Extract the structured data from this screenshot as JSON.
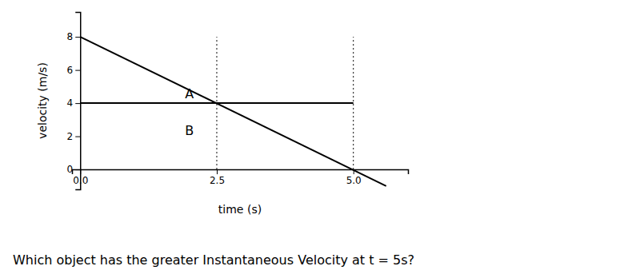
{
  "chart_data": {
    "type": "line",
    "xlabel": "time (s)",
    "ylabel": "velocity (m/s)",
    "color": "#000000",
    "xlim": [
      -0.15,
      6.0
    ],
    "ylim": [
      -1.2,
      9.5
    ],
    "xticks": [
      {
        "value": 0,
        "label": "0.0"
      },
      {
        "value": 2.5,
        "label": "2.5"
      },
      {
        "value": 5,
        "label": "5.0"
      }
    ],
    "yticks": [
      0,
      2,
      4,
      6,
      8
    ],
    "series": [
      {
        "name": "A",
        "x": [
          0,
          5
        ],
        "values": [
          4,
          4
        ],
        "label_x": 2.0,
        "label_y": 4.5
      },
      {
        "name": "B",
        "x": [
          0,
          5.6
        ],
        "values": [
          8,
          -1.0
        ],
        "label_x": 2.0,
        "label_y": 2.3
      }
    ],
    "reference_lines": [
      {
        "x": 2.5,
        "y_from": 0,
        "y_to": 8
      },
      {
        "x": 5,
        "y_from": 0,
        "y_to": 8
      }
    ],
    "annotations": [
      "Which object has the greater Instantaneous Velocity at t = 5s?"
    ]
  }
}
